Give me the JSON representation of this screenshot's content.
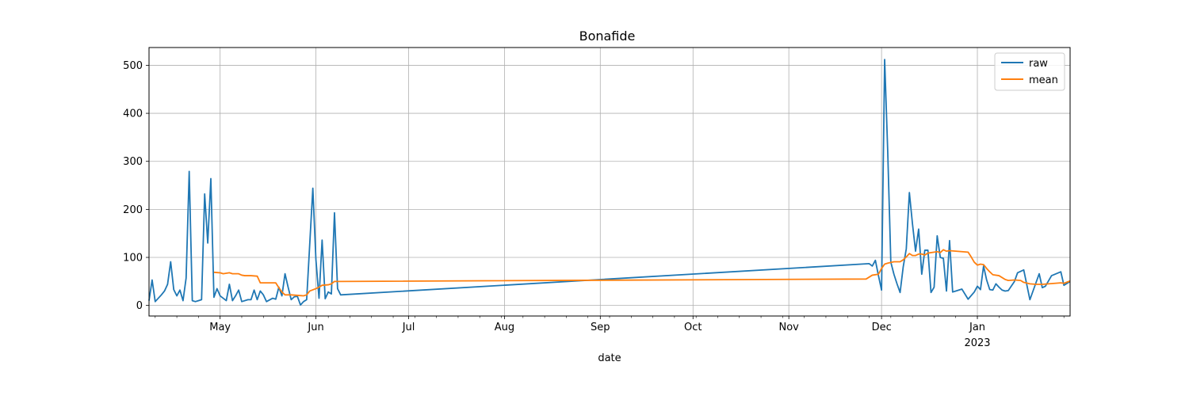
{
  "chart_data": {
    "type": "line",
    "title": "Bonafide",
    "xlabel": "date",
    "ylabel": "",
    "ylim": [
      -22,
      537
    ],
    "xlim": [
      "2022-04-08",
      "2023-01-31"
    ],
    "grid": true,
    "legend_position": "top-right",
    "y_ticks": [
      0,
      100,
      200,
      300,
      400,
      500
    ],
    "x_ticks": [
      {
        "date": "2022-05-01",
        "label": "May"
      },
      {
        "date": "2022-06-01",
        "label": "Jun"
      },
      {
        "date": "2022-07-01",
        "label": "Jul"
      },
      {
        "date": "2022-08-01",
        "label": "Aug"
      },
      {
        "date": "2022-09-01",
        "label": "Sep"
      },
      {
        "date": "2022-10-01",
        "label": "Oct"
      },
      {
        "date": "2022-11-01",
        "label": "Nov"
      },
      {
        "date": "2022-12-01",
        "label": "Dec"
      },
      {
        "date": "2023-01-01",
        "label": "Jan",
        "sublabel": "2023"
      }
    ],
    "series": [
      {
        "name": "raw",
        "color": "#1f77b4",
        "points": [
          [
            "2022-04-08",
            10
          ],
          [
            "2022-04-09",
            53
          ],
          [
            "2022-04-10",
            8
          ],
          [
            "2022-04-12",
            22
          ],
          [
            "2022-04-13",
            30
          ],
          [
            "2022-04-14",
            44
          ],
          [
            "2022-04-15",
            91
          ],
          [
            "2022-04-16",
            33
          ],
          [
            "2022-04-17",
            20
          ],
          [
            "2022-04-18",
            32
          ],
          [
            "2022-04-19",
            10
          ],
          [
            "2022-04-20",
            57
          ],
          [
            "2022-04-21",
            279
          ],
          [
            "2022-04-22",
            10
          ],
          [
            "2022-04-23",
            8
          ],
          [
            "2022-04-24",
            10
          ],
          [
            "2022-04-25",
            12
          ],
          [
            "2022-04-26",
            232
          ],
          [
            "2022-04-27",
            130
          ],
          [
            "2022-04-28",
            264
          ],
          [
            "2022-04-29",
            17
          ],
          [
            "2022-04-30",
            35
          ],
          [
            "2022-05-01",
            20
          ],
          [
            "2022-05-03",
            10
          ],
          [
            "2022-05-04",
            44
          ],
          [
            "2022-05-05",
            10
          ],
          [
            "2022-05-06",
            20
          ],
          [
            "2022-05-07",
            32
          ],
          [
            "2022-05-08",
            8
          ],
          [
            "2022-05-10",
            12
          ],
          [
            "2022-05-11",
            12
          ],
          [
            "2022-05-12",
            32
          ],
          [
            "2022-05-13",
            12
          ],
          [
            "2022-05-14",
            30
          ],
          [
            "2022-05-15",
            22
          ],
          [
            "2022-05-16",
            8
          ],
          [
            "2022-05-18",
            15
          ],
          [
            "2022-05-19",
            13
          ],
          [
            "2022-05-20",
            38
          ],
          [
            "2022-05-21",
            20
          ],
          [
            "2022-05-22",
            66
          ],
          [
            "2022-05-23",
            38
          ],
          [
            "2022-05-24",
            12
          ],
          [
            "2022-05-25",
            18
          ],
          [
            "2022-05-26",
            19
          ],
          [
            "2022-05-27",
            1
          ],
          [
            "2022-05-28",
            8
          ],
          [
            "2022-05-29",
            12
          ],
          [
            "2022-05-31",
            244
          ],
          [
            "2022-06-01",
            95
          ],
          [
            "2022-06-02",
            15
          ],
          [
            "2022-06-03",
            136
          ],
          [
            "2022-06-04",
            14
          ],
          [
            "2022-06-05",
            28
          ],
          [
            "2022-06-06",
            24
          ],
          [
            "2022-06-07",
            193
          ],
          [
            "2022-06-08",
            35
          ],
          [
            "2022-06-09",
            22
          ],
          [
            "2022-11-27",
            87
          ],
          [
            "2022-11-28",
            82
          ],
          [
            "2022-11-29",
            94
          ],
          [
            "2022-11-30",
            62
          ],
          [
            "2022-12-01",
            32
          ],
          [
            "2022-12-02",
            512
          ],
          [
            "2022-12-03",
            320
          ],
          [
            "2022-12-04",
            90
          ],
          [
            "2022-12-05",
            65
          ],
          [
            "2022-12-06",
            45
          ],
          [
            "2022-12-07",
            27
          ],
          [
            "2022-12-08",
            80
          ],
          [
            "2022-12-09",
            118
          ],
          [
            "2022-12-10",
            235
          ],
          [
            "2022-12-11",
            170
          ],
          [
            "2022-12-12",
            113
          ],
          [
            "2022-12-13",
            159
          ],
          [
            "2022-12-14",
            65
          ],
          [
            "2022-12-15",
            115
          ],
          [
            "2022-12-16",
            115
          ],
          [
            "2022-12-17",
            27
          ],
          [
            "2022-12-18",
            38
          ],
          [
            "2022-12-19",
            145
          ],
          [
            "2022-12-20",
            100
          ],
          [
            "2022-12-21",
            98
          ],
          [
            "2022-12-22",
            30
          ],
          [
            "2022-12-23",
            135
          ],
          [
            "2022-12-24",
            28
          ],
          [
            "2022-12-25",
            30
          ],
          [
            "2022-12-27",
            34
          ],
          [
            "2022-12-29",
            13
          ],
          [
            "2022-12-31",
            28
          ],
          [
            "2023-01-01",
            40
          ],
          [
            "2023-01-02",
            33
          ],
          [
            "2023-01-03",
            82
          ],
          [
            "2023-01-04",
            53
          ],
          [
            "2023-01-05",
            33
          ],
          [
            "2023-01-06",
            32
          ],
          [
            "2023-01-07",
            45
          ],
          [
            "2023-01-08",
            38
          ],
          [
            "2023-01-09",
            32
          ],
          [
            "2023-01-10",
            30
          ],
          [
            "2023-01-11",
            31
          ],
          [
            "2023-01-13",
            50
          ],
          [
            "2023-01-14",
            68
          ],
          [
            "2023-01-16",
            74
          ],
          [
            "2023-01-18",
            12
          ],
          [
            "2023-01-21",
            66
          ],
          [
            "2023-01-22",
            37
          ],
          [
            "2023-01-23",
            40
          ],
          [
            "2023-01-25",
            62
          ],
          [
            "2023-01-28",
            70
          ],
          [
            "2023-01-29",
            42
          ],
          [
            "2023-01-31",
            50
          ]
        ]
      },
      {
        "name": "mean",
        "color": "#ff7f0e",
        "points": [
          [
            "2022-04-29",
            69
          ],
          [
            "2022-05-01",
            68
          ],
          [
            "2022-05-02",
            66
          ],
          [
            "2022-05-03",
            67
          ],
          [
            "2022-05-04",
            68
          ],
          [
            "2022-05-05",
            66
          ],
          [
            "2022-05-07",
            66
          ],
          [
            "2022-05-08",
            63
          ],
          [
            "2022-05-09",
            62
          ],
          [
            "2022-05-11",
            62
          ],
          [
            "2022-05-13",
            61
          ],
          [
            "2022-05-14",
            47
          ],
          [
            "2022-05-15",
            47
          ],
          [
            "2022-05-19",
            47
          ],
          [
            "2022-05-20",
            37
          ],
          [
            "2022-05-21",
            28
          ],
          [
            "2022-05-22",
            22
          ],
          [
            "2022-05-24",
            22
          ],
          [
            "2022-05-26",
            21
          ],
          [
            "2022-05-28",
            20
          ],
          [
            "2022-05-29",
            22
          ],
          [
            "2022-05-30",
            30
          ],
          [
            "2022-06-01",
            35
          ],
          [
            "2022-06-02",
            38
          ],
          [
            "2022-06-03",
            42
          ],
          [
            "2022-06-05",
            43
          ],
          [
            "2022-06-06",
            45
          ],
          [
            "2022-06-07",
            50
          ],
          [
            "2022-06-09",
            50
          ],
          [
            "2022-11-26",
            55
          ],
          [
            "2022-11-28",
            63
          ],
          [
            "2022-11-30",
            65
          ],
          [
            "2022-12-01",
            77
          ],
          [
            "2022-12-02",
            86
          ],
          [
            "2022-12-03",
            88
          ],
          [
            "2022-12-05",
            91
          ],
          [
            "2022-12-07",
            91
          ],
          [
            "2022-12-08",
            95
          ],
          [
            "2022-12-09",
            101
          ],
          [
            "2022-12-10",
            108
          ],
          [
            "2022-12-11",
            104
          ],
          [
            "2022-12-12",
            104
          ],
          [
            "2022-12-13",
            107
          ],
          [
            "2022-12-14",
            107
          ],
          [
            "2022-12-15",
            105
          ],
          [
            "2022-12-16",
            109
          ],
          [
            "2022-12-18",
            111
          ],
          [
            "2022-12-19",
            112
          ],
          [
            "2022-12-20",
            110
          ],
          [
            "2022-12-21",
            116
          ],
          [
            "2022-12-22",
            113
          ],
          [
            "2022-12-23",
            114
          ],
          [
            "2022-12-25",
            113
          ],
          [
            "2022-12-27",
            112
          ],
          [
            "2022-12-29",
            111
          ],
          [
            "2022-12-30",
            101
          ],
          [
            "2022-12-31",
            90
          ],
          [
            "2023-01-01",
            84
          ],
          [
            "2023-01-02",
            86
          ],
          [
            "2023-01-03",
            85
          ],
          [
            "2023-01-04",
            77
          ],
          [
            "2023-01-05",
            70
          ],
          [
            "2023-01-06",
            64
          ],
          [
            "2023-01-08",
            62
          ],
          [
            "2023-01-10",
            54
          ],
          [
            "2023-01-11",
            52
          ],
          [
            "2023-01-13",
            53
          ],
          [
            "2023-01-15",
            52
          ],
          [
            "2023-01-16",
            48
          ],
          [
            "2023-01-18",
            45
          ],
          [
            "2023-01-20",
            44
          ],
          [
            "2023-01-22",
            44
          ],
          [
            "2023-01-24",
            45
          ],
          [
            "2023-01-26",
            46
          ],
          [
            "2023-01-28",
            47
          ],
          [
            "2023-01-29",
            46
          ],
          [
            "2023-01-31",
            51
          ]
        ]
      }
    ]
  }
}
